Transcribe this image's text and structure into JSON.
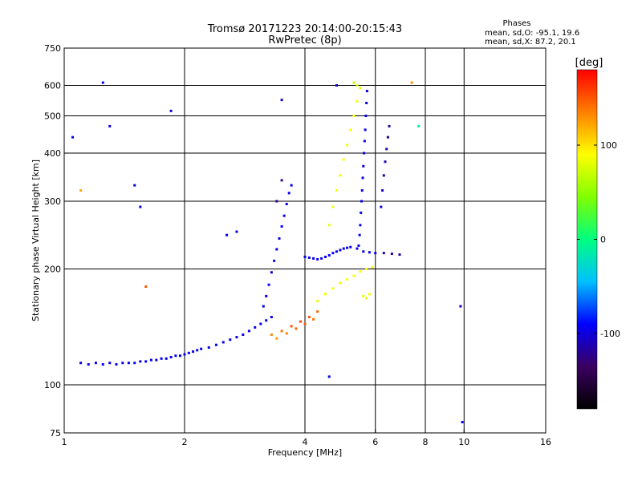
{
  "chart_data": {
    "type": "scatter",
    "title": "Tromsø 20171223 20:14:00-20:15:43",
    "subtitle": "RwPretec (8p)",
    "xlabel": "Frequency [MHz]",
    "ylabel": "Stationary phase Virtual Height [km]",
    "x_scale": "log",
    "y_scale": "log",
    "xlim": [
      1,
      16
    ],
    "ylim": [
      75,
      750
    ],
    "x_ticks": [
      1,
      2,
      4,
      6,
      8,
      10,
      16
    ],
    "x_tick_labels": [
      "1",
      "2",
      "4",
      "6",
      "8",
      "10",
      "16"
    ],
    "y_ticks": [
      75,
      100,
      200,
      300,
      400,
      500,
      600,
      750
    ],
    "y_tick_labels": [
      "75",
      "100",
      "200",
      "300",
      "400",
      "500",
      "600",
      "750"
    ],
    "x_gridlines": [
      1,
      2,
      4,
      6,
      8,
      10,
      16
    ],
    "y_gridlines": [
      100,
      200,
      300,
      400,
      500,
      600
    ],
    "grid": true,
    "colorbar": {
      "label": "[deg]",
      "range": [
        -180,
        180
      ],
      "ticks": [
        100,
        0,
        -100
      ],
      "tick_labels": [
        "100",
        "0",
        "-100"
      ],
      "colormap": "rainbow",
      "colors": [
        "#000000",
        "#3b0060",
        "#0000ff",
        "#00c0ff",
        "#00ff80",
        "#80ff00",
        "#ffff00",
        "#ff8000",
        "#ff0000"
      ]
    },
    "stats": {
      "title": "Phases",
      "line1": "mean, sd,O:  -95.1, 19.6",
      "line2": "mean, sd,X:   87.2, 20.1"
    },
    "series": [
      {
        "points": [
          [
            1.1,
            114,
            -95
          ],
          [
            1.15,
            113,
            -95
          ],
          [
            1.2,
            114,
            -96
          ],
          [
            1.25,
            113,
            -94
          ],
          [
            1.3,
            114,
            -95
          ],
          [
            1.35,
            113,
            -96
          ],
          [
            1.4,
            114,
            -95
          ],
          [
            1.45,
            114,
            -94
          ],
          [
            1.5,
            114,
            -95
          ],
          [
            1.55,
            115,
            -96
          ],
          [
            1.6,
            115,
            -95
          ],
          [
            1.65,
            116,
            -94
          ],
          [
            1.7,
            116,
            -95
          ],
          [
            1.75,
            117,
            -96
          ],
          [
            1.8,
            117,
            -95
          ],
          [
            1.85,
            118,
            -94
          ],
          [
            1.9,
            119,
            -96
          ],
          [
            1.95,
            119,
            -95
          ],
          [
            2.0,
            120,
            -95
          ],
          [
            2.05,
            121,
            -94
          ],
          [
            2.1,
            122,
            -96
          ],
          [
            2.15,
            123,
            -95
          ],
          [
            2.2,
            124,
            -93
          ],
          [
            2.3,
            125,
            -95
          ],
          [
            2.4,
            127,
            -94
          ],
          [
            2.5,
            129,
            -96
          ],
          [
            2.6,
            131,
            -95
          ],
          [
            2.7,
            133,
            -94
          ],
          [
            2.8,
            135,
            -93
          ],
          [
            2.9,
            138,
            -95
          ],
          [
            3.0,
            141,
            -96
          ],
          [
            3.1,
            144,
            -94
          ],
          [
            3.2,
            147,
            -95
          ],
          [
            3.3,
            150,
            -93
          ]
        ]
      },
      {
        "points": [
          [
            3.15,
            160,
            -96
          ],
          [
            3.2,
            170,
            -95
          ],
          [
            3.25,
            182,
            -94
          ],
          [
            3.3,
            196,
            -95
          ],
          [
            3.35,
            210,
            -96
          ],
          [
            3.4,
            225,
            -95
          ],
          [
            3.45,
            240,
            -94
          ],
          [
            3.5,
            258,
            -95
          ],
          [
            3.55,
            275,
            -96
          ],
          [
            3.6,
            295,
            -95
          ],
          [
            3.65,
            315,
            -94
          ],
          [
            3.7,
            330,
            -95
          ],
          [
            3.4,
            300,
            -120
          ],
          [
            3.5,
            340,
            -125
          ]
        ]
      },
      {
        "points": [
          [
            4.0,
            215,
            -95
          ],
          [
            4.1,
            214,
            -96
          ],
          [
            4.2,
            213,
            -94
          ],
          [
            4.3,
            212,
            -95
          ],
          [
            4.4,
            213,
            -96
          ],
          [
            4.5,
            215,
            -95
          ],
          [
            4.6,
            217,
            -94
          ],
          [
            4.7,
            220,
            -95
          ],
          [
            4.8,
            222,
            -96
          ],
          [
            4.9,
            224,
            -95
          ],
          [
            5.0,
            226,
            -94
          ],
          [
            5.1,
            227,
            -95
          ],
          [
            5.2,
            228,
            -96
          ],
          [
            5.4,
            226,
            -95
          ],
          [
            5.6,
            222,
            -94
          ],
          [
            5.8,
            221,
            -96
          ],
          [
            6.0,
            220,
            -95
          ],
          [
            6.3,
            220,
            -115
          ],
          [
            6.6,
            219,
            -120
          ],
          [
            6.9,
            218,
            -118
          ]
        ]
      },
      {
        "points": [
          [
            5.45,
            230,
            -95
          ],
          [
            5.48,
            245,
            -96
          ],
          [
            5.5,
            260,
            -94
          ],
          [
            5.52,
            280,
            -95
          ],
          [
            5.54,
            300,
            -96
          ],
          [
            5.56,
            320,
            -95
          ],
          [
            5.58,
            345,
            -94
          ],
          [
            5.6,
            370,
            -95
          ],
          [
            5.62,
            400,
            -96
          ],
          [
            5.64,
            430,
            -95
          ],
          [
            5.66,
            460,
            -94
          ],
          [
            5.68,
            500,
            -95
          ],
          [
            5.7,
            540,
            -96
          ],
          [
            5.72,
            580,
            -95
          ],
          [
            6.2,
            290,
            -100
          ],
          [
            6.25,
            320,
            -105
          ],
          [
            6.3,
            350,
            -110
          ],
          [
            6.35,
            380,
            -112
          ],
          [
            6.4,
            410,
            -115
          ],
          [
            6.45,
            440,
            -118
          ],
          [
            6.5,
            470,
            -120
          ]
        ]
      },
      {
        "points": [
          [
            4.3,
            165,
            82
          ],
          [
            4.5,
            172,
            85
          ],
          [
            4.7,
            178,
            88
          ],
          [
            4.9,
            184,
            86
          ],
          [
            5.1,
            188,
            90
          ],
          [
            5.3,
            192,
            87
          ],
          [
            5.5,
            197,
            88
          ],
          [
            5.7,
            200,
            89
          ],
          [
            5.9,
            202,
            86
          ],
          [
            5.6,
            170,
            80
          ],
          [
            5.7,
            168,
            84
          ],
          [
            5.8,
            172,
            85
          ]
        ]
      },
      {
        "points": [
          [
            4.6,
            260,
            82
          ],
          [
            4.7,
            290,
            85
          ],
          [
            4.8,
            320,
            88
          ],
          [
            4.9,
            350,
            86
          ],
          [
            5.0,
            385,
            90
          ],
          [
            5.1,
            420,
            87
          ],
          [
            5.2,
            460,
            88
          ],
          [
            5.3,
            500,
            89
          ],
          [
            5.4,
            545,
            86
          ],
          [
            5.5,
            590,
            85
          ],
          [
            5.3,
            610,
            70
          ],
          [
            5.4,
            600,
            75
          ]
        ]
      },
      {
        "points": [
          [
            3.3,
            135,
            130
          ],
          [
            3.5,
            138,
            140
          ],
          [
            3.7,
            142,
            150
          ],
          [
            3.9,
            146,
            155
          ],
          [
            4.1,
            150,
            150
          ],
          [
            4.3,
            155,
            145
          ],
          [
            3.4,
            132,
            125
          ],
          [
            3.6,
            136,
            135
          ],
          [
            3.8,
            140,
            145
          ],
          [
            4.0,
            144,
            148
          ],
          [
            4.2,
            148,
            140
          ]
        ]
      },
      {
        "points": [
          [
            1.05,
            440,
            -95
          ],
          [
            1.25,
            610,
            -95
          ],
          [
            1.3,
            470,
            -95
          ],
          [
            1.5,
            330,
            -95
          ],
          [
            1.55,
            290,
            -95
          ],
          [
            1.6,
            180,
            150
          ],
          [
            1.85,
            515,
            -100
          ],
          [
            2.55,
            245,
            -95
          ],
          [
            2.7,
            250,
            -100
          ],
          [
            3.5,
            550,
            -110
          ],
          [
            4.6,
            105,
            -95
          ],
          [
            4.8,
            600,
            -100
          ],
          [
            7.4,
            610,
            130
          ],
          [
            7.7,
            470,
            -10
          ],
          [
            9.9,
            80,
            -95
          ],
          [
            9.8,
            160,
            -110
          ],
          [
            1.1,
            320,
            120
          ]
        ]
      }
    ]
  }
}
